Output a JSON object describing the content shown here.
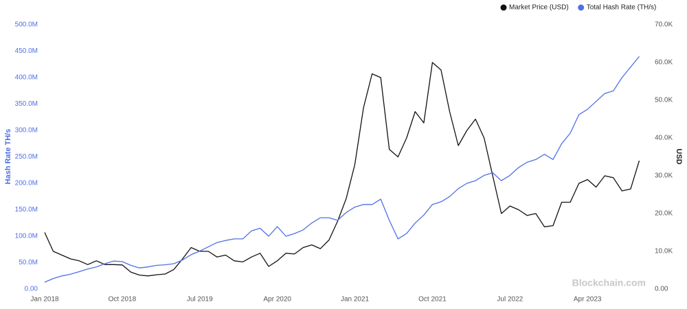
{
  "chart_data": {
    "type": "line",
    "y_label": "Hash Rate TH/s",
    "y2_label": "USD",
    "watermark": "Blockchain.com",
    "x": [
      "2018-01",
      "2018-02",
      "2018-03",
      "2018-04",
      "2018-05",
      "2018-06",
      "2018-07",
      "2018-08",
      "2018-09",
      "2018-10",
      "2018-11",
      "2018-12",
      "2019-01",
      "2019-02",
      "2019-03",
      "2019-04",
      "2019-05",
      "2019-06",
      "2019-07",
      "2019-08",
      "2019-09",
      "2019-10",
      "2019-11",
      "2019-12",
      "2020-01",
      "2020-02",
      "2020-03",
      "2020-04",
      "2020-05",
      "2020-06",
      "2020-07",
      "2020-08",
      "2020-09",
      "2020-10",
      "2020-11",
      "2020-12",
      "2021-01",
      "2021-02",
      "2021-03",
      "2021-04",
      "2021-05",
      "2021-06",
      "2021-07",
      "2021-08",
      "2021-09",
      "2021-10",
      "2021-11",
      "2021-12",
      "2022-01",
      "2022-02",
      "2022-03",
      "2022-04",
      "2022-05",
      "2022-06",
      "2022-07",
      "2022-08",
      "2022-09",
      "2022-10",
      "2022-11",
      "2022-12",
      "2023-01",
      "2023-02",
      "2023-03",
      "2023-04",
      "2023-05",
      "2023-06",
      "2023-07",
      "2023-08",
      "2023-09",
      "2023-10"
    ],
    "xlim": [
      "2018-01",
      "2023-11"
    ],
    "xticks": [
      {
        "value": "2018-01",
        "label": "Jan 2018"
      },
      {
        "value": "2018-10",
        "label": "Oct 2018"
      },
      {
        "value": "2019-07",
        "label": "Jul 2019"
      },
      {
        "value": "2020-04",
        "label": "Apr 2020"
      },
      {
        "value": "2021-01",
        "label": "Jan 2021"
      },
      {
        "value": "2021-10",
        "label": "Oct 2021"
      },
      {
        "value": "2022-07",
        "label": "Jul 2022"
      },
      {
        "value": "2023-04",
        "label": "Apr 2023"
      }
    ],
    "ylim": [
      0,
      500000000
    ],
    "yticks": [
      {
        "value": 0,
        "label": "0.00"
      },
      {
        "value": 50000000,
        "label": "50.0M"
      },
      {
        "value": 100000000,
        "label": "100.0M"
      },
      {
        "value": 150000000,
        "label": "150.0M"
      },
      {
        "value": 200000000,
        "label": "200.0M"
      },
      {
        "value": 250000000,
        "label": "250.0M"
      },
      {
        "value": 300000000,
        "label": "300.0M"
      },
      {
        "value": 350000000,
        "label": "350.0M"
      },
      {
        "value": 400000000,
        "label": "400.0M"
      },
      {
        "value": 450000000,
        "label": "450.0M"
      },
      {
        "value": 500000000,
        "label": "500.0M"
      }
    ],
    "y2lim": [
      0,
      70000
    ],
    "y2ticks": [
      {
        "value": 0,
        "label": "0.00"
      },
      {
        "value": 10000,
        "label": "10.0K"
      },
      {
        "value": 20000,
        "label": "20.0K"
      },
      {
        "value": 30000,
        "label": "30.0K"
      },
      {
        "value": 40000,
        "label": "40.0K"
      },
      {
        "value": 50000,
        "label": "50.0K"
      },
      {
        "value": 60000,
        "label": "60.0K"
      },
      {
        "value": 70000,
        "label": "70.0K"
      }
    ],
    "series": [
      {
        "name": "Market Price (USD)",
        "color": "#111111",
        "axis": "y2",
        "values": [
          15000,
          10000,
          9000,
          8000,
          7500,
          6500,
          7500,
          6500,
          6500,
          6400,
          4500,
          3700,
          3500,
          3800,
          4000,
          5200,
          8000,
          11000,
          10000,
          10000,
          8500,
          9000,
          7500,
          7200,
          8500,
          9500,
          6000,
          7500,
          9500,
          9300,
          11000,
          11700,
          10700,
          13000,
          18000,
          24000,
          33000,
          48000,
          57000,
          56000,
          37000,
          35000,
          40000,
          47000,
          44000,
          60000,
          58000,
          47000,
          38000,
          42000,
          45000,
          40000,
          30000,
          20000,
          22000,
          21000,
          19500,
          20000,
          16500,
          16800,
          23000,
          23000,
          28000,
          29000,
          27000,
          30000,
          29500,
          26000,
          26500,
          34000
        ]
      },
      {
        "name": "Total Hash Rate (TH/s)",
        "color": "#4f6fe6",
        "values": [
          13000000,
          20000000,
          25000000,
          28000000,
          33000000,
          38000000,
          42000000,
          48000000,
          53000000,
          52000000,
          45000000,
          40000000,
          42000000,
          45000000,
          46000000,
          48000000,
          55000000,
          65000000,
          72000000,
          80000000,
          88000000,
          92000000,
          95000000,
          95000000,
          110000000,
          115000000,
          100000000,
          118000000,
          100000000,
          105000000,
          112000000,
          125000000,
          135000000,
          135000000,
          130000000,
          145000000,
          155000000,
          160000000,
          160000000,
          170000000,
          130000000,
          95000000,
          105000000,
          125000000,
          140000000,
          160000000,
          165000000,
          175000000,
          190000000,
          200000000,
          205000000,
          215000000,
          220000000,
          205000000,
          215000000,
          230000000,
          240000000,
          245000000,
          255000000,
          245000000,
          275000000,
          295000000,
          330000000,
          340000000,
          355000000,
          370000000,
          375000000,
          400000000,
          420000000,
          440000000
        ]
      }
    ]
  }
}
